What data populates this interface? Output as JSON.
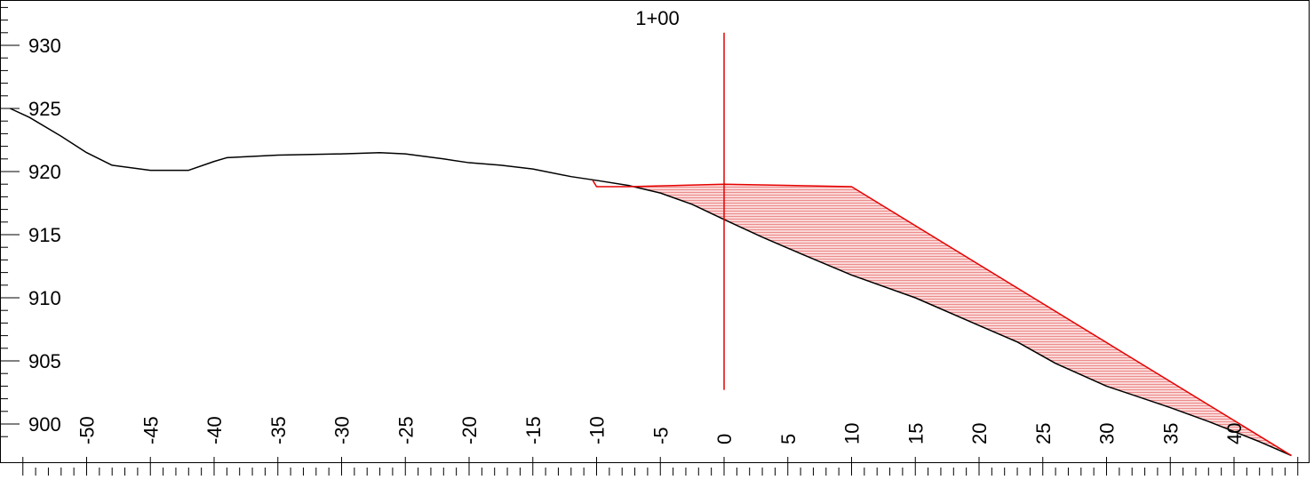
{
  "chart_data": {
    "type": "line",
    "title": "",
    "xlabel": "",
    "ylabel": "",
    "station_label": "1+00",
    "xlim": [
      -55.5,
      46
    ],
    "ylim": [
      898,
      933
    ],
    "y_ticks": [
      {
        "value": 930,
        "label": "930"
      },
      {
        "value": 925,
        "label": "925"
      },
      {
        "value": 920,
        "label": "920"
      },
      {
        "value": 915,
        "label": "915"
      },
      {
        "value": 910,
        "label": "910"
      },
      {
        "value": 905,
        "label": "905"
      },
      {
        "value": 900,
        "label": "900"
      }
    ],
    "x_ticks": [
      {
        "value": -50,
        "label": "-50"
      },
      {
        "value": -45,
        "label": "-45"
      },
      {
        "value": -40,
        "label": "-40"
      },
      {
        "value": -35,
        "label": "-35"
      },
      {
        "value": -30,
        "label": "-30"
      },
      {
        "value": -25,
        "label": "-25"
      },
      {
        "value": -20,
        "label": "-20"
      },
      {
        "value": -15,
        "label": "-15"
      },
      {
        "value": -10,
        "label": "-10"
      },
      {
        "value": -5,
        "label": "-5"
      },
      {
        "value": 0,
        "label": "0"
      },
      {
        "value": 5,
        "label": "5"
      },
      {
        "value": 10,
        "label": "10"
      },
      {
        "value": 15,
        "label": "15"
      },
      {
        "value": 20,
        "label": "20"
      },
      {
        "value": 25,
        "label": "25"
      },
      {
        "value": 30,
        "label": "30"
      },
      {
        "value": 35,
        "label": "35"
      },
      {
        "value": 40,
        "label": "40"
      }
    ],
    "series": [
      {
        "color": "#000000",
        "x": [
          -56,
          -54.5,
          -52,
          -50,
          -48,
          -45,
          -42,
          -40,
          -39,
          -35,
          -30,
          -27,
          -25,
          -22,
          -20,
          -17.5,
          -15,
          -12,
          -10,
          -7.5,
          -5,
          -2.5,
          0,
          3,
          6,
          10,
          15,
          20,
          23,
          26,
          30,
          35,
          38,
          42,
          44.5
        ],
        "y": [
          925,
          924.3,
          922.8,
          921.5,
          920.5,
          920.1,
          920.1,
          920.8,
          921.1,
          921.3,
          921.4,
          921.5,
          921.4,
          921,
          920.7,
          920.5,
          920.2,
          919.6,
          919.3,
          918.9,
          918.3,
          917.4,
          916.2,
          914.8,
          913.5,
          911.8,
          910,
          907.8,
          906.5,
          904.8,
          903,
          901.3,
          900.2,
          898.6,
          897.5
        ]
      },
      {
        "color": "#e60000",
        "x": [
          -10.3,
          -10,
          -7.5,
          0,
          10,
          44.5
        ],
        "y": [
          919.3,
          918.8,
          918.8,
          919,
          918.8,
          897.5
        ]
      }
    ],
    "fill_color": "#e60000",
    "station_line": {
      "x": 0,
      "y_top": 931,
      "y_bottom": 902.7,
      "color": "#e60000"
    }
  }
}
